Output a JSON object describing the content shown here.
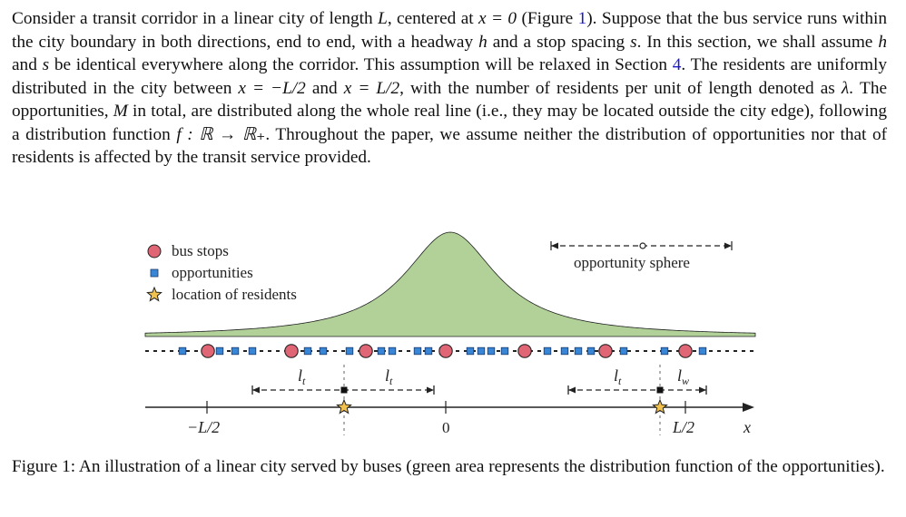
{
  "paragraph": {
    "line1": "Consider a transit corridor in a linear city of length ",
    "L": "L",
    "line1b": ", centered at ",
    "xeq0": "x = 0",
    "line1c": " (Figure ",
    "fig_ref": "1",
    "line1d": "). Suppose that the bus service runs within the city boundary in both directions, end to end, with a headway ",
    "h": "h",
    "line2b": " and a stop spacing ",
    "s": "s",
    "line2c": ". In this section, we shall assume ",
    "h2": "h",
    "line3a": " and ",
    "s2": "s",
    "line3b": " be identical everywhere along the corridor. This assumption will be relaxed in Section ",
    "sec_ref": "4",
    "line3c": ". The residents are uniformly distributed in the city between ",
    "xlo": "x = −L/2",
    "line4a": " and ",
    "xhi": "x = L/2",
    "line4b": ", with the number of residents per unit of length denoted as ",
    "lambda": "λ",
    "line5a": ". The opportunities, ",
    "M": "M",
    "line5b": " in total, are distributed along the whole real line (i.e., they may be located outside the city edge), following a distribution function ",
    "fmap": "f : ℝ → ℝ₊",
    "line6a": ". Throughout the paper, we assume neither the distribution of opportunities nor that of residents is affected by the transit service provided."
  },
  "figure": {
    "legend": {
      "bus_stops": "bus stops",
      "opportunities": "opportunities",
      "residents": "location of residents"
    },
    "sphere_label": "opportunity sphere",
    "lt": "l",
    "lt_sub": "t",
    "lw": "l",
    "lw_sub": "w",
    "tick_neg": "−L/2",
    "tick_zero": "0",
    "tick_pos": "L/2",
    "axis_var": "x",
    "colors": {
      "distribution_fill": "#b1d198",
      "bus_stop": "#e06575",
      "opportunity": "#3a86d6",
      "resident": "#f2c14e"
    }
  },
  "caption": "Figure 1: An illustration of a linear city served by buses (green area represents the distribution function of the opportunities)."
}
